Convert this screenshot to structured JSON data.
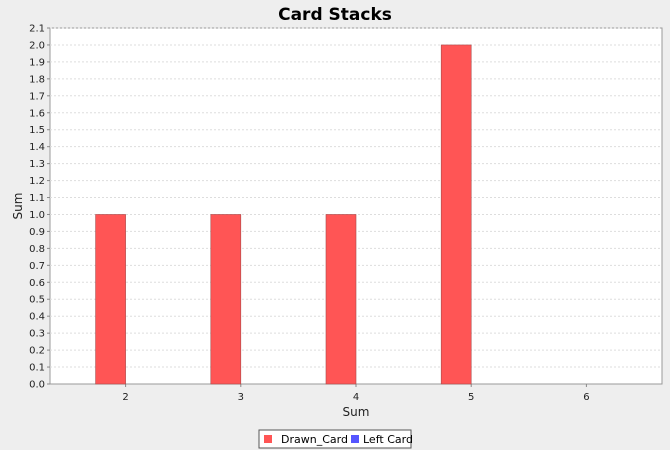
{
  "chart_data": {
    "type": "bar",
    "title": "Card Stacks",
    "xlabel": "Sum",
    "ylabel": "Sum",
    "categories": [
      "2",
      "3",
      "4",
      "5",
      "6"
    ],
    "series": [
      {
        "name": "Drawn_Card",
        "color": "#ff5555",
        "values": [
          1.0,
          1.0,
          1.0,
          2.0,
          0.0
        ]
      },
      {
        "name": "Left Card",
        "color": "#5555ff",
        "values": [
          0.0,
          0.0,
          0.0,
          0.0,
          0.0
        ]
      }
    ],
    "ylim": [
      0,
      2.1
    ],
    "yticks": [
      "0.0",
      "0.1",
      "0.2",
      "0.3",
      "0.4",
      "0.5",
      "0.6",
      "0.7",
      "0.8",
      "0.9",
      "1.0",
      "1.1",
      "1.2",
      "1.3",
      "1.4",
      "1.5",
      "1.6",
      "1.7",
      "1.8",
      "1.9",
      "2.0",
      "2.1"
    ],
    "grid": true,
    "legend_position": "bottom"
  }
}
